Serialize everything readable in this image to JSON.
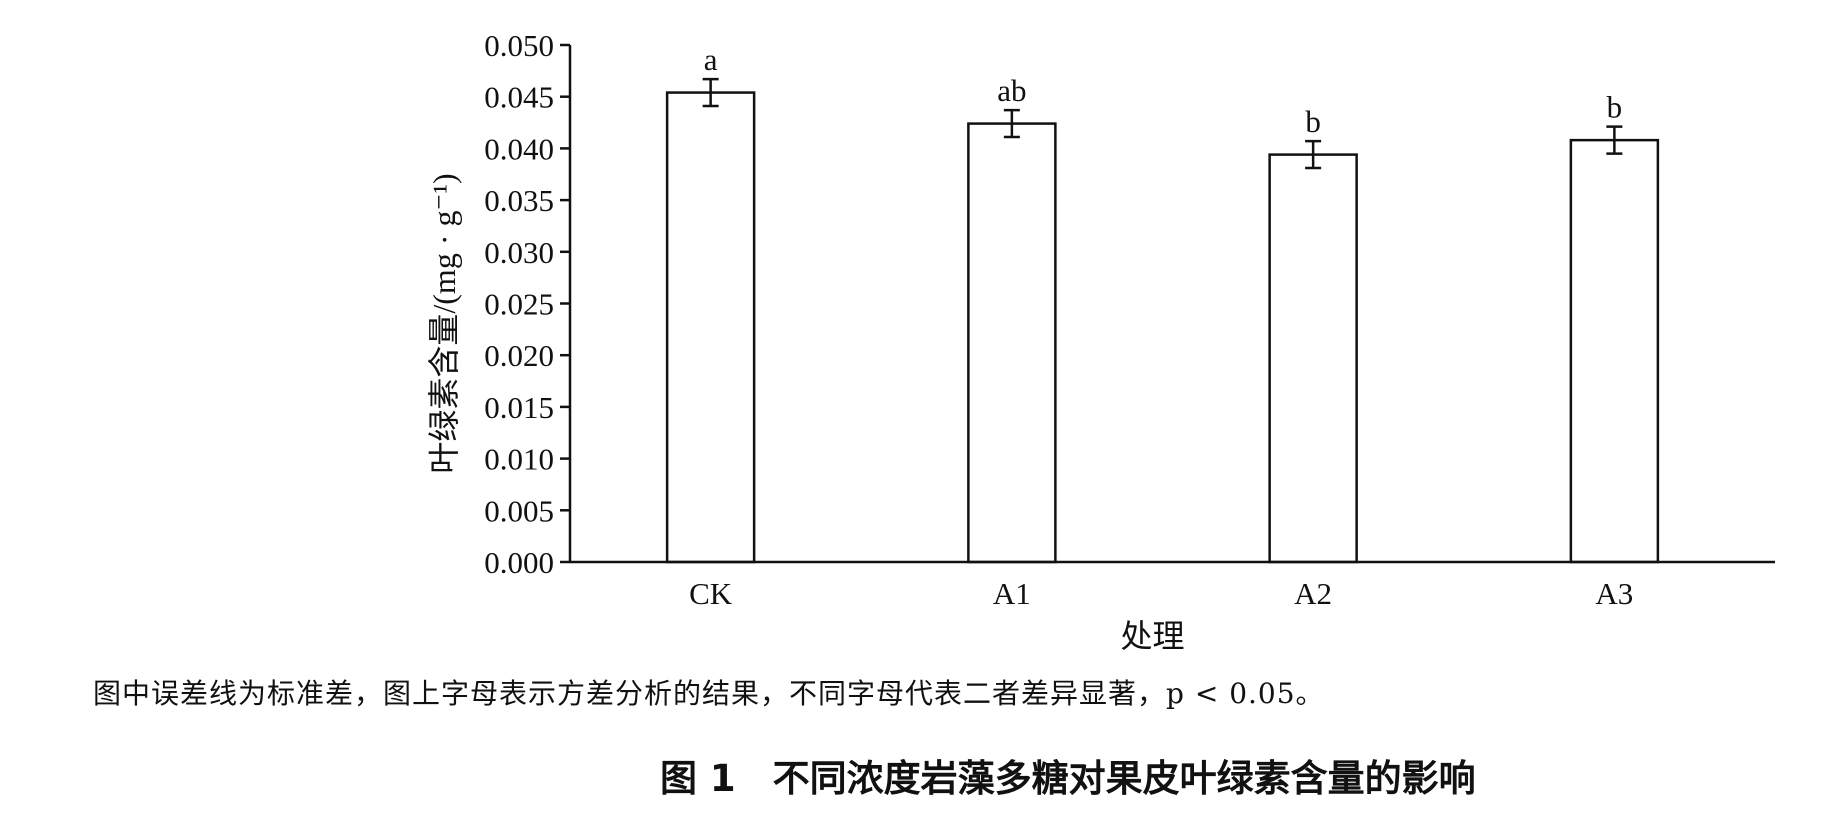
{
  "chart_data": {
    "type": "bar",
    "categories": [
      "CK",
      "A1",
      "A2",
      "A3"
    ],
    "values": [
      0.0454,
      0.0424,
      0.0394,
      0.0408
    ],
    "errors": [
      0.0013,
      0.0013,
      0.0013,
      0.0013
    ],
    "significance_letters": [
      "a",
      "ab",
      "b",
      "b"
    ],
    "xlabel": "处理",
    "ylabel": "叶绿素含量/(mg · g⁻¹)",
    "ylim": [
      0,
      0.05
    ],
    "yticks": [
      "0.000",
      "0.005",
      "0.010",
      "0.015",
      "0.020",
      "0.025",
      "0.030",
      "0.035",
      "0.040",
      "0.045",
      "0.050"
    ],
    "grid": false,
    "bar_fill": "#ffffff",
    "bar_stroke": "#111111"
  },
  "note": "图中误差线为标准差，图上字母表示方差分析的结果，不同字母代表二者差异显著，p < 0.05。",
  "caption": "图 1　不同浓度岩藻多糖对果皮叶绿素含量的影响"
}
